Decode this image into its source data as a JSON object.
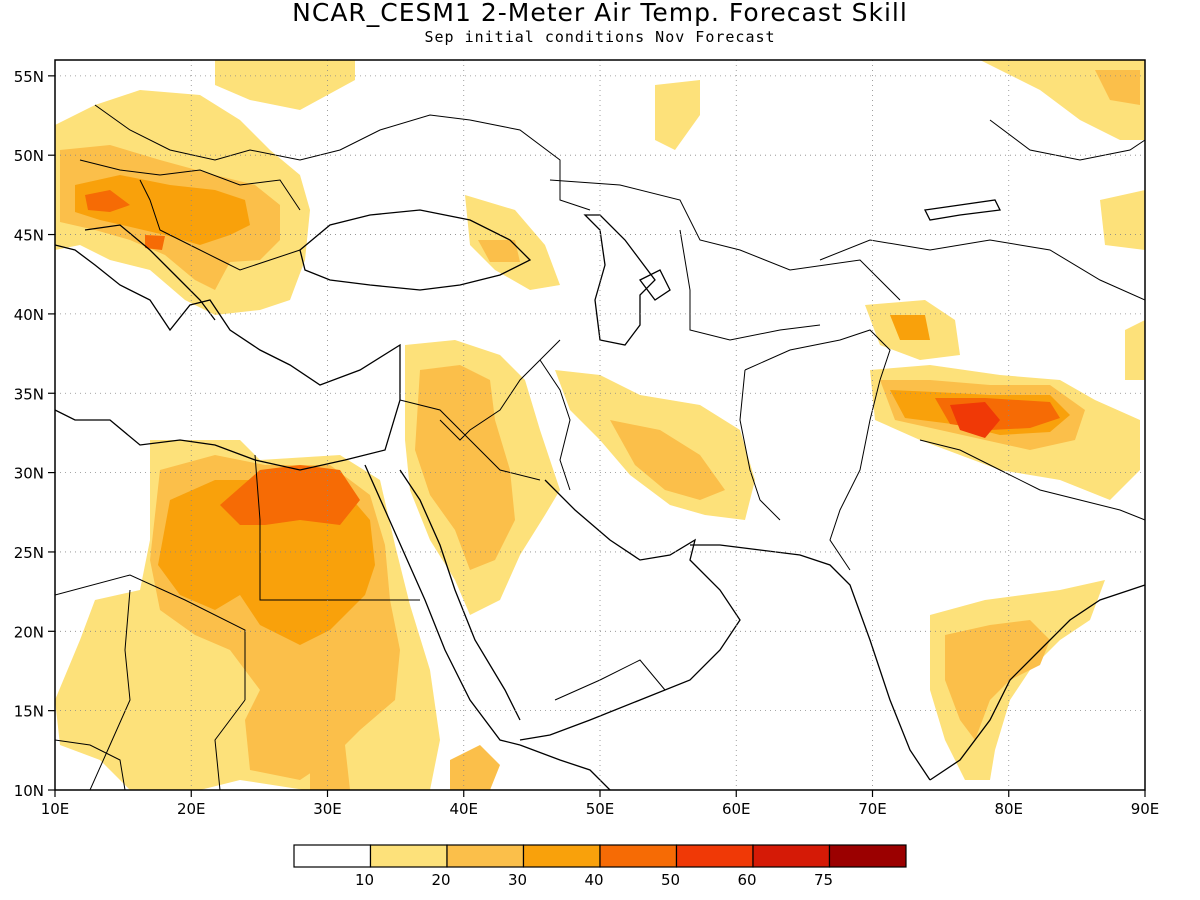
{
  "title": "NCAR_CESM1 2-Meter Air Temp. Forecast Skill",
  "subtitle": "Sep initial conditions  Nov Forecast",
  "map": {
    "lon_range": [
      10,
      90
    ],
    "lat_range": [
      10,
      56
    ],
    "lon_ticks": [
      "10E",
      "20E",
      "30E",
      "40E",
      "50E",
      "60E",
      "70E",
      "80E",
      "90E"
    ],
    "lat_ticks": [
      "10N",
      "15N",
      "20N",
      "25N",
      "30N",
      "35N",
      "40N",
      "45N",
      "50N",
      "55N"
    ],
    "grid": "dotted"
  },
  "legend": {
    "thresholds": [
      "10",
      "20",
      "30",
      "40",
      "50",
      "60",
      "75"
    ],
    "colors": [
      "#ffffff",
      "#fde17a",
      "#fbbf4a",
      "#f9a10b",
      "#f66b05",
      "#f03906",
      "#d51a06",
      "#9b0000"
    ]
  }
}
